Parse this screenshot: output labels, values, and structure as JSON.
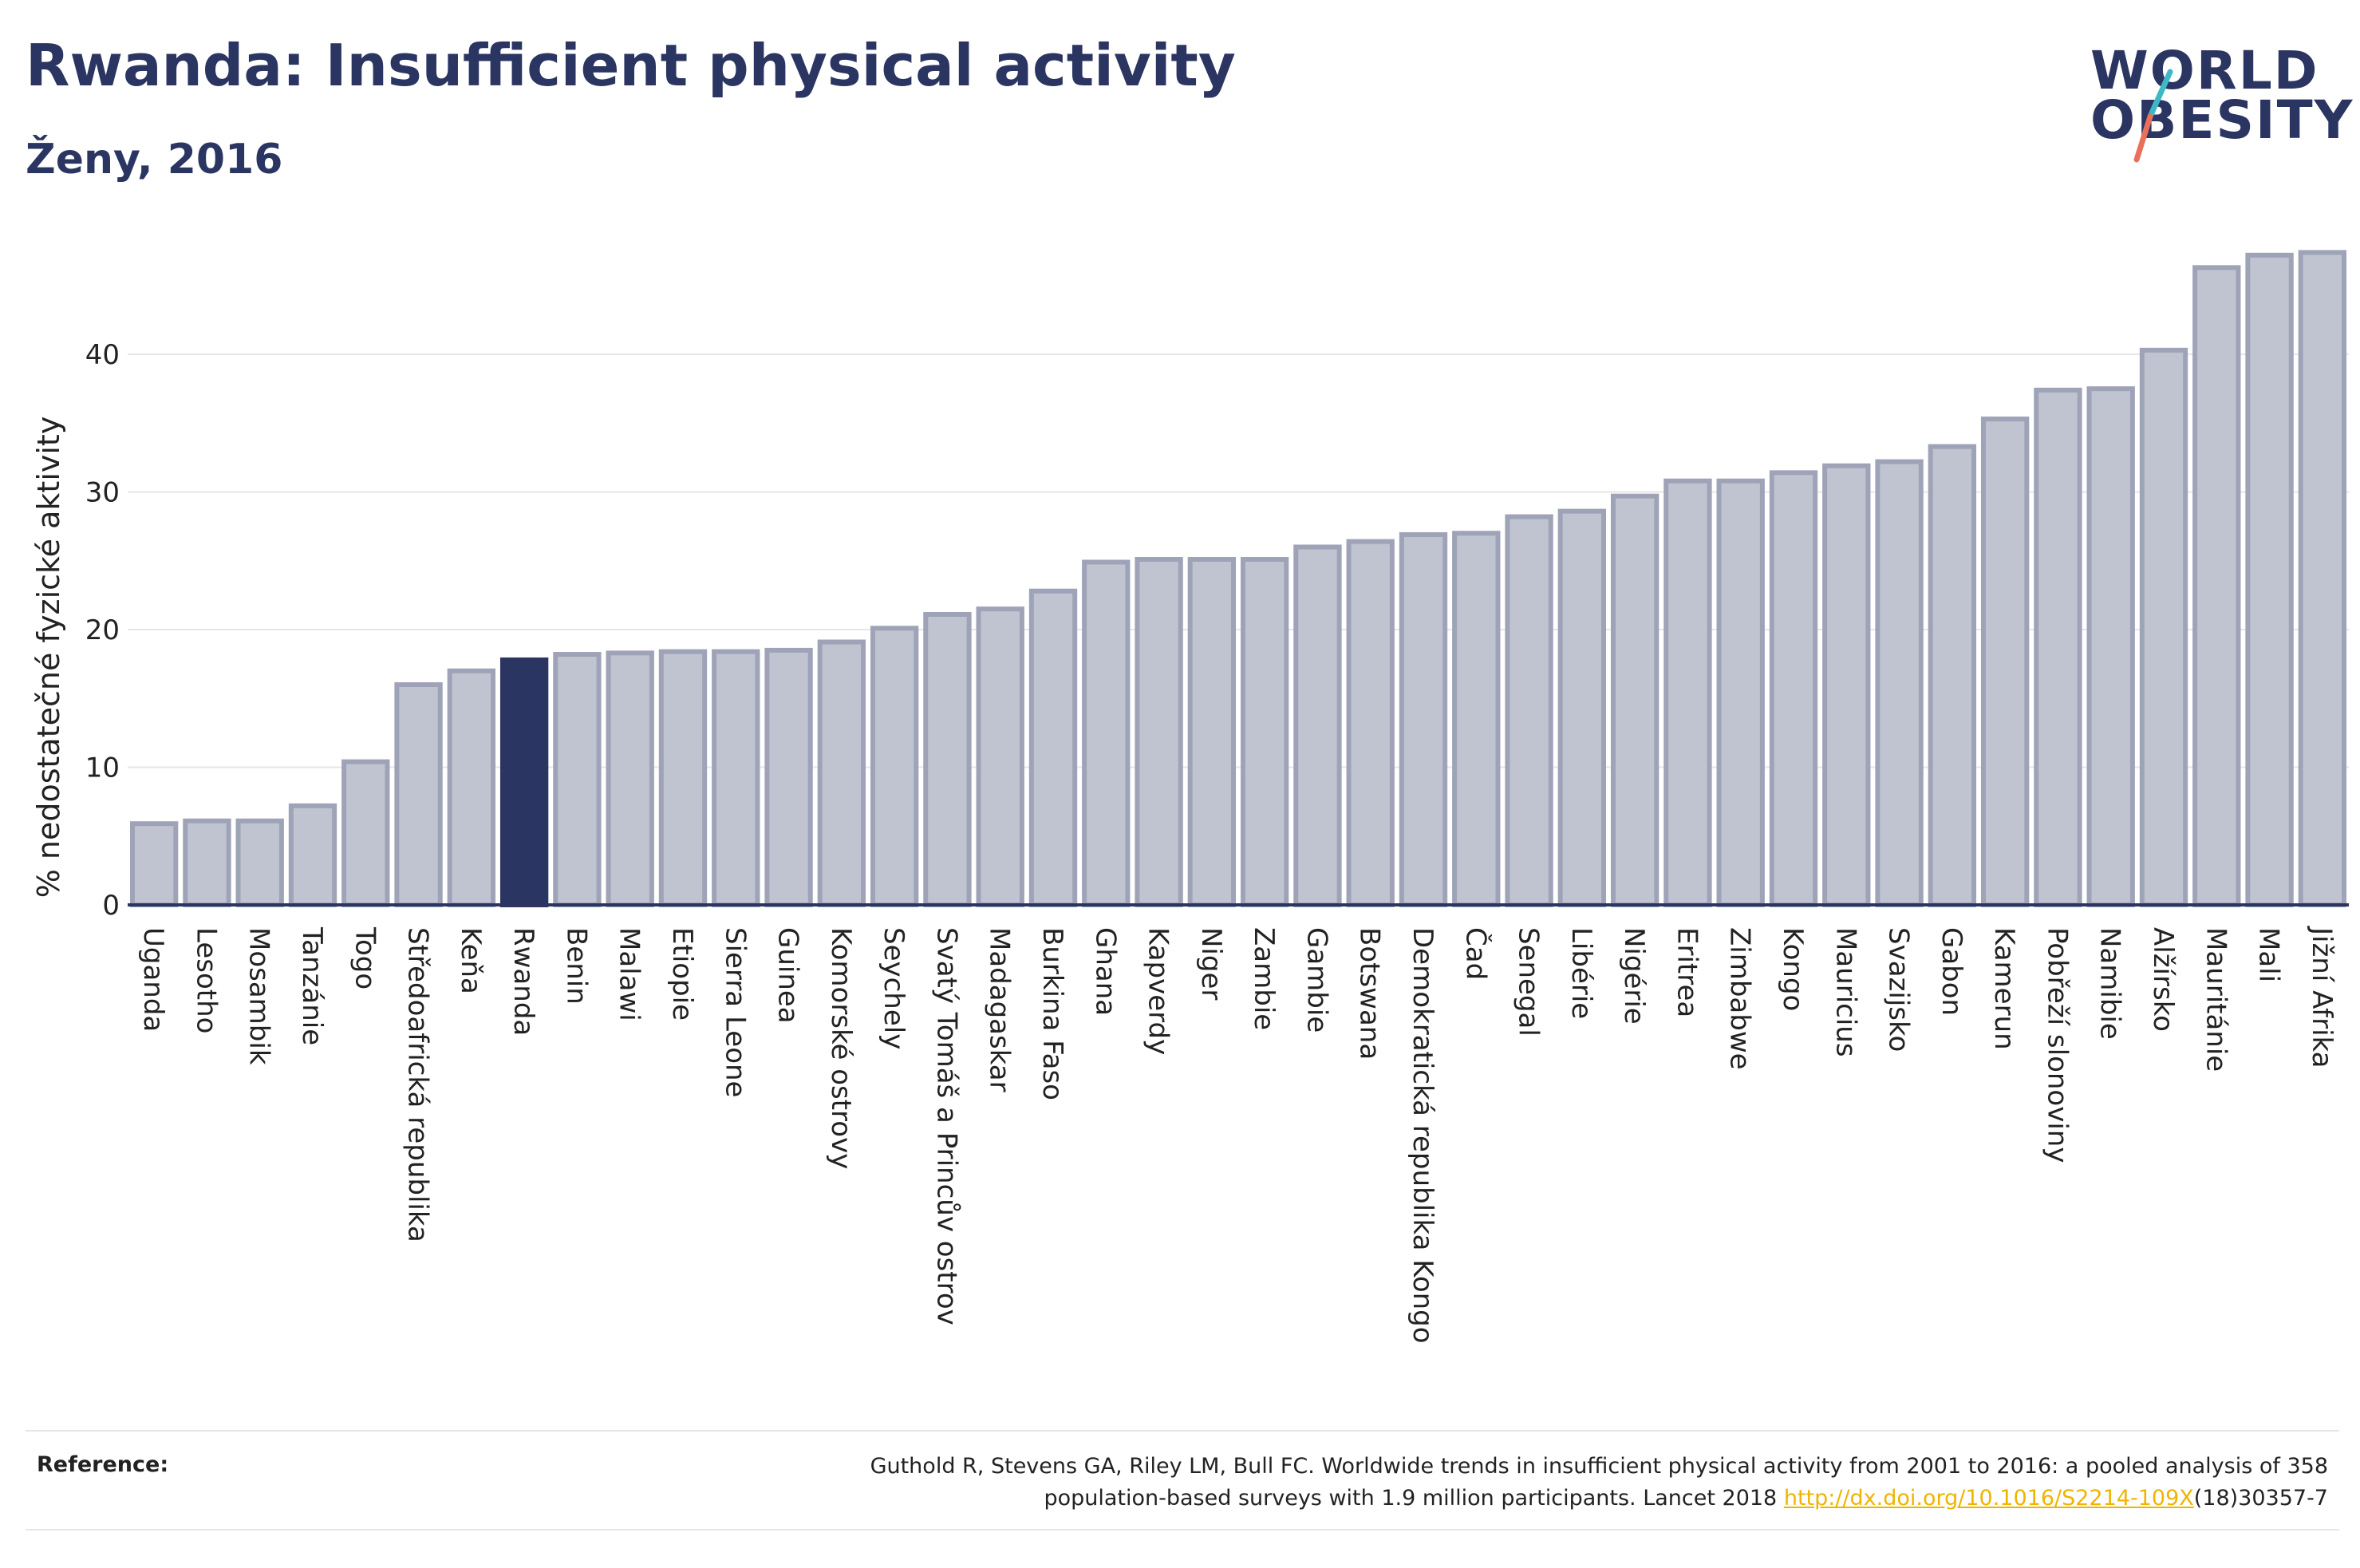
{
  "title": "Rwanda: Insufficient physical activity",
  "subtitle": "Ženy, 2016",
  "logo": {
    "line1": "WORLD",
    "line2": "OBESITY",
    "colors": {
      "slash_top": "#3fb8c6",
      "slash_bottom": "#e8705c"
    }
  },
  "reference": {
    "label": "Reference:",
    "line1": "Guthold R, Stevens GA, Riley LM, Bull FC. Worldwide trends in insufficient physical activity from 2001 to 2016: a pooled analysis of 358",
    "line2_prefix": "population-based surveys with 1.9 million participants. Lancet 2018 ",
    "link": "http://dx.doi.org/10.1016/S2214-109X",
    "line2_suffix": "(18)30357-7"
  },
  "colors": {
    "highlight": "#2b3562",
    "bar_fill": "#c0c4d1",
    "bar_stroke": "#9ea3b8",
    "grid": "#e6e6e6",
    "axis": "#2b3562"
  },
  "chart_data": {
    "type": "bar",
    "ylabel": "% nedostatečné fyzické aktivity",
    "xlabel": "",
    "ylim": [
      0,
      50
    ],
    "yticks": [
      0,
      10,
      20,
      30,
      40
    ],
    "grid": true,
    "highlight": "Rwanda",
    "categories": [
      "Uganda",
      "Lesotho",
      "Mosambik",
      "Tanzánie",
      "Togo",
      "Středoafrická republika",
      "Keňa",
      "Rwanda",
      "Benin",
      "Malawi",
      "Etiopie",
      "Sierra Leone",
      "Guinea",
      "Komorské ostrovy",
      "Seychely",
      "Svatý Tomáš a Princův ostrov",
      "Madagaskar",
      "Burkina Faso",
      "Ghana",
      "Kapverdy",
      "Niger",
      "Zambie",
      "Gambie",
      "Botswana",
      "Demokratická republika Kongo",
      "Čad",
      "Senegal",
      "Libérie",
      "Nigérie",
      "Eritrea",
      "Zimbabwe",
      "Kongo",
      "Mauricius",
      "Svazijsko",
      "Gabon",
      "Kamerun",
      "Pobřeží slonoviny",
      "Namibie",
      "Alžírsko",
      "Mauritánie",
      "Mali",
      "Jižní Afrika"
    ],
    "values": [
      5.9,
      6.1,
      6.1,
      7.2,
      10.4,
      16.0,
      17.0,
      17.8,
      18.2,
      18.3,
      18.4,
      18.4,
      18.5,
      19.1,
      20.1,
      21.1,
      21.5,
      22.8,
      24.9,
      25.1,
      25.1,
      25.1,
      26.0,
      26.4,
      26.9,
      27.0,
      28.2,
      28.6,
      29.7,
      30.8,
      30.8,
      31.4,
      31.9,
      32.2,
      33.3,
      35.3,
      37.4,
      37.5,
      40.3,
      46.3,
      47.2,
      47.4
    ]
  }
}
